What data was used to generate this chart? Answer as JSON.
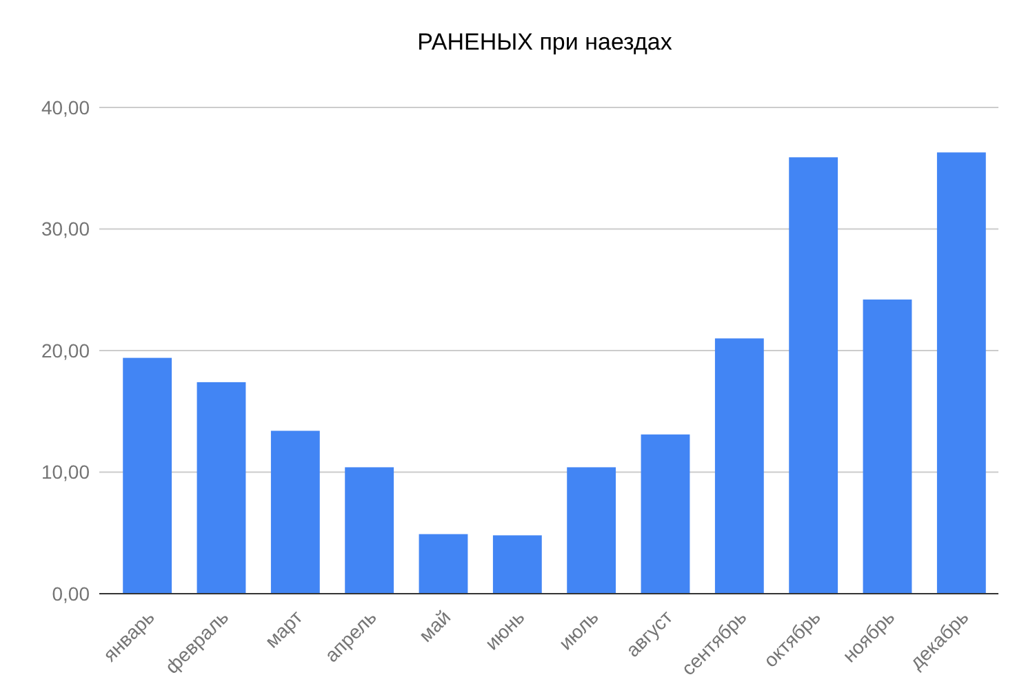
{
  "chart_data": {
    "type": "bar",
    "title": "РАНЕНЫХ при наездах",
    "categories": [
      "январь",
      "февраль",
      "март",
      "апрель",
      "май",
      "июнь",
      "июль",
      "август",
      "сентябрь",
      "октябрь",
      "ноябрь",
      "декабрь"
    ],
    "values": [
      19.4,
      17.4,
      13.4,
      10.4,
      4.9,
      4.8,
      10.4,
      13.1,
      21.0,
      35.9,
      24.2,
      36.3
    ],
    "color": "#4285f4",
    "ylim": [
      0,
      40
    ],
    "yticks": [
      {
        "value": 0,
        "label": "0,00"
      },
      {
        "value": 10,
        "label": "10,00"
      },
      {
        "value": 20,
        "label": "20,00"
      },
      {
        "value": 30,
        "label": "30,00"
      },
      {
        "value": 40,
        "label": "40,00"
      }
    ],
    "grid": true
  }
}
